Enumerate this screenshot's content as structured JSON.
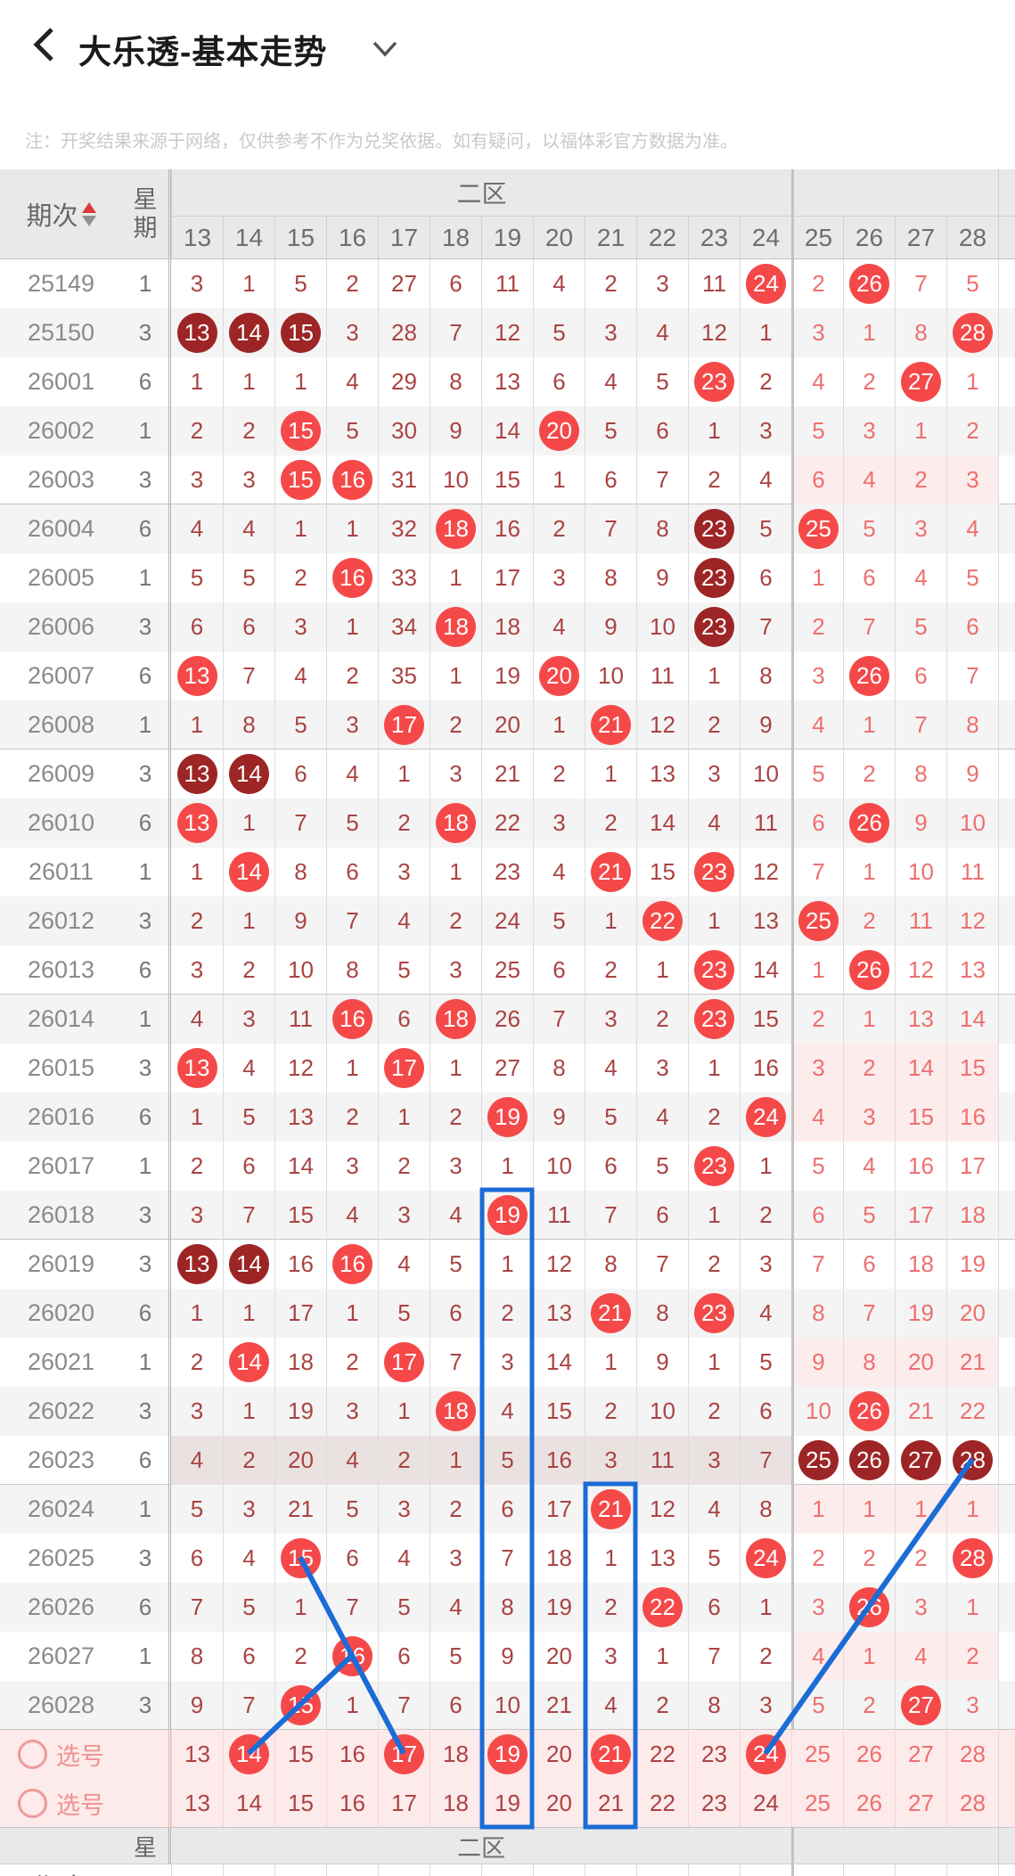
{
  "appbar": {
    "title": "大乐透-基本走势",
    "back_icon": "chevron-left",
    "dropdown_icon": "chevron-down"
  },
  "note": "注：开奖结果来源于网络，仅供参考不作为兑奖依据。如有疑问，以福体彩官方数据为准。",
  "table": {
    "period_header": "期次",
    "week_header_top": "星",
    "week_header_bottom": "期",
    "zone_header": "二区",
    "columns": [
      "13",
      "14",
      "15",
      "16",
      "17",
      "18",
      "19",
      "20",
      "21",
      "22",
      "23",
      "24",
      "25",
      "26",
      "27",
      "28"
    ],
    "zone2_columns": 12,
    "rows": [
      {
        "period": "25149",
        "week": "1",
        "cells": [
          "3",
          "1",
          "5",
          "2",
          "27",
          "6",
          "11",
          "4",
          "2",
          "3",
          "11",
          "r24",
          "2",
          "r26",
          "7",
          "5"
        ]
      },
      {
        "period": "25150",
        "week": "3",
        "cells": [
          "d13",
          "d14",
          "d15",
          "3",
          "28",
          "7",
          "12",
          "5",
          "3",
          "4",
          "12",
          "1",
          "3",
          "1",
          "8",
          "r28"
        ]
      },
      {
        "period": "26001",
        "week": "6",
        "cells": [
          "1",
          "1",
          "1",
          "4",
          "29",
          "8",
          "13",
          "6",
          "4",
          "5",
          "r23",
          "2",
          "4",
          "2",
          "r27",
          "1"
        ]
      },
      {
        "period": "26002",
        "week": "1",
        "cells": [
          "2",
          "2",
          "r15",
          "5",
          "30",
          "9",
          "14",
          "r20",
          "5",
          "6",
          "1",
          "3",
          "5",
          "3",
          "1",
          "2"
        ]
      },
      {
        "period": "26003",
        "week": "3",
        "pink": true,
        "group_end": true,
        "cells": [
          "3",
          "3",
          "r15",
          "r16",
          "31",
          "10",
          "15",
          "1",
          "6",
          "7",
          "2",
          "4",
          "6",
          "4",
          "2",
          "3"
        ]
      },
      {
        "period": "26004",
        "week": "6",
        "cells": [
          "4",
          "4",
          "1",
          "1",
          "32",
          "r18",
          "16",
          "2",
          "7",
          "8",
          "d23",
          "5",
          "r25",
          "5",
          "3",
          "4"
        ]
      },
      {
        "period": "26005",
        "week": "1",
        "cells": [
          "5",
          "5",
          "2",
          "r16",
          "33",
          "1",
          "17",
          "3",
          "8",
          "9",
          "d23",
          "6",
          "1",
          "6",
          "4",
          "5"
        ]
      },
      {
        "period": "26006",
        "week": "3",
        "cells": [
          "6",
          "6",
          "3",
          "1",
          "34",
          "r18",
          "18",
          "4",
          "9",
          "10",
          "d23",
          "7",
          "2",
          "7",
          "5",
          "6"
        ]
      },
      {
        "period": "26007",
        "week": "6",
        "cells": [
          "r13",
          "7",
          "4",
          "2",
          "35",
          "1",
          "19",
          "r20",
          "10",
          "11",
          "1",
          "8",
          "3",
          "r26",
          "6",
          "7"
        ]
      },
      {
        "period": "26008",
        "week": "1",
        "group_end": true,
        "cells": [
          "1",
          "8",
          "5",
          "3",
          "r17",
          "2",
          "20",
          "1",
          "r21",
          "12",
          "2",
          "9",
          "4",
          "1",
          "7",
          "8"
        ]
      },
      {
        "period": "26009",
        "week": "3",
        "cells": [
          "d13",
          "d14",
          "6",
          "4",
          "1",
          "3",
          "21",
          "2",
          "1",
          "13",
          "3",
          "10",
          "5",
          "2",
          "8",
          "9"
        ]
      },
      {
        "period": "26010",
        "week": "6",
        "cells": [
          "r13",
          "1",
          "7",
          "5",
          "2",
          "r18",
          "22",
          "3",
          "2",
          "14",
          "4",
          "11",
          "6",
          "r26",
          "9",
          "10"
        ]
      },
      {
        "period": "26011",
        "week": "1",
        "cells": [
          "1",
          "r14",
          "8",
          "6",
          "3",
          "1",
          "23",
          "4",
          "r21",
          "15",
          "r23",
          "12",
          "7",
          "1",
          "10",
          "11"
        ]
      },
      {
        "period": "26012",
        "week": "3",
        "cells": [
          "2",
          "1",
          "9",
          "7",
          "4",
          "2",
          "24",
          "5",
          "1",
          "r22",
          "1",
          "13",
          "r25",
          "2",
          "11",
          "12"
        ]
      },
      {
        "period": "26013",
        "week": "6",
        "group_end": true,
        "cells": [
          "3",
          "2",
          "10",
          "8",
          "5",
          "3",
          "25",
          "6",
          "2",
          "1",
          "r23",
          "14",
          "1",
          "r26",
          "12",
          "13"
        ]
      },
      {
        "period": "26014",
        "week": "1",
        "cells": [
          "4",
          "3",
          "11",
          "r16",
          "6",
          "r18",
          "26",
          "7",
          "3",
          "2",
          "r23",
          "15",
          "2",
          "1",
          "13",
          "14"
        ]
      },
      {
        "period": "26015",
        "week": "3",
        "pink": true,
        "cells": [
          "r13",
          "4",
          "12",
          "1",
          "r17",
          "1",
          "27",
          "8",
          "4",
          "3",
          "1",
          "16",
          "3",
          "2",
          "14",
          "15"
        ]
      },
      {
        "period": "26016",
        "week": "6",
        "pink": true,
        "cells": [
          "1",
          "5",
          "13",
          "2",
          "1",
          "2",
          "r19",
          "9",
          "5",
          "4",
          "2",
          "r24",
          "4",
          "3",
          "15",
          "16"
        ]
      },
      {
        "period": "26017",
        "week": "1",
        "cells": [
          "2",
          "6",
          "14",
          "3",
          "2",
          "3",
          "1",
          "10",
          "6",
          "5",
          "r23",
          "1",
          "5",
          "4",
          "16",
          "17"
        ]
      },
      {
        "period": "26018",
        "week": "3",
        "group_end": true,
        "cells": [
          "3",
          "7",
          "15",
          "4",
          "3",
          "4",
          "r19",
          "11",
          "7",
          "6",
          "1",
          "2",
          "6",
          "5",
          "17",
          "18"
        ]
      },
      {
        "period": "26019",
        "week": "3",
        "cells": [
          "d13",
          "d14",
          "16",
          "r16",
          "4",
          "5",
          "1",
          "12",
          "8",
          "7",
          "2",
          "3",
          "7",
          "6",
          "18",
          "19"
        ]
      },
      {
        "period": "26020",
        "week": "6",
        "cells": [
          "1",
          "1",
          "17",
          "1",
          "5",
          "6",
          "2",
          "13",
          "r21",
          "8",
          "r23",
          "4",
          "8",
          "7",
          "19",
          "20"
        ]
      },
      {
        "period": "26021",
        "week": "1",
        "pink": true,
        "cells": [
          "2",
          "r14",
          "18",
          "2",
          "r17",
          "7",
          "3",
          "14",
          "1",
          "9",
          "1",
          "5",
          "9",
          "8",
          "20",
          "21"
        ]
      },
      {
        "period": "26022",
        "week": "3",
        "cells": [
          "3",
          "1",
          "19",
          "3",
          "1",
          "r18",
          "4",
          "15",
          "2",
          "10",
          "2",
          "6",
          "10",
          "r26",
          "21",
          "22"
        ]
      },
      {
        "period": "26023",
        "week": "6",
        "tint": true,
        "group_end": true,
        "cells": [
          "4",
          "2",
          "20",
          "4",
          "2",
          "1",
          "5",
          "16",
          "3",
          "11",
          "3",
          "7",
          "d25",
          "d26",
          "d27",
          "d28"
        ]
      },
      {
        "period": "26024",
        "week": "1",
        "pink": true,
        "cells": [
          "5",
          "3",
          "21",
          "5",
          "3",
          "2",
          "6",
          "17",
          "r21",
          "12",
          "4",
          "8",
          "1",
          "1",
          "1",
          "1"
        ]
      },
      {
        "period": "26025",
        "week": "3",
        "cells": [
          "6",
          "4",
          "r15",
          "6",
          "4",
          "3",
          "7",
          "18",
          "1",
          "13",
          "5",
          "r24",
          "2",
          "2",
          "2",
          "r28"
        ]
      },
      {
        "period": "26026",
        "week": "6",
        "cells": [
          "7",
          "5",
          "1",
          "7",
          "5",
          "4",
          "8",
          "19",
          "2",
          "r22",
          "6",
          "1",
          "3",
          "r26",
          "3",
          "1"
        ]
      },
      {
        "period": "26027",
        "week": "1",
        "pink": true,
        "cells": [
          "8",
          "6",
          "2",
          "r16",
          "6",
          "5",
          "9",
          "20",
          "3",
          "1",
          "7",
          "2",
          "4",
          "1",
          "4",
          "2"
        ]
      },
      {
        "period": "26028",
        "week": "3",
        "group_end": true,
        "cells": [
          "9",
          "7",
          "r15",
          "1",
          "7",
          "6",
          "10",
          "21",
          "4",
          "2",
          "8",
          "3",
          "5",
          "2",
          "r27",
          "3"
        ]
      },
      {
        "pick": true,
        "label": "选号",
        "cells": [
          "13",
          "r14",
          "15",
          "16",
          "r17",
          "18",
          "r19",
          "20",
          "r21",
          "22",
          "23",
          "r24",
          "25",
          "26",
          "27",
          "28"
        ]
      },
      {
        "pick": true,
        "label": "选号",
        "cells": [
          "13",
          "14",
          "15",
          "16",
          "17",
          "18",
          "19",
          "20",
          "21",
          "22",
          "23",
          "24",
          "25",
          "26",
          "27",
          "28"
        ]
      }
    ]
  },
  "highlights": {
    "boxed_columns": [
      {
        "col": 19,
        "from_row": 19,
        "to_row": 31
      },
      {
        "col": 21,
        "from_row": 25,
        "to_row": 31
      }
    ],
    "connection_lines": [
      {
        "from_row": 26,
        "from_col": 15,
        "to_row": 30,
        "to_col": 17
      },
      {
        "from_row": 28,
        "from_col": 16,
        "to_row": 30,
        "to_col": 14
      },
      {
        "from_row": 24,
        "from_col": 28,
        "to_row": 30,
        "to_col": 24
      }
    ]
  },
  "colors": {
    "accent_blue": "#1b6cd6",
    "ball_red": "#f54949",
    "ball_dark": "#9d2525",
    "text_dark_red": "#ab4343",
    "text_light_red": "#ee6f6f",
    "pink_bg": "#fdecec",
    "pick_row_bg": "#fdeaea",
    "header_bg": "#e9e9e9",
    "sort_up": "#df3a3a",
    "sort_down": "#8f8f8f"
  }
}
